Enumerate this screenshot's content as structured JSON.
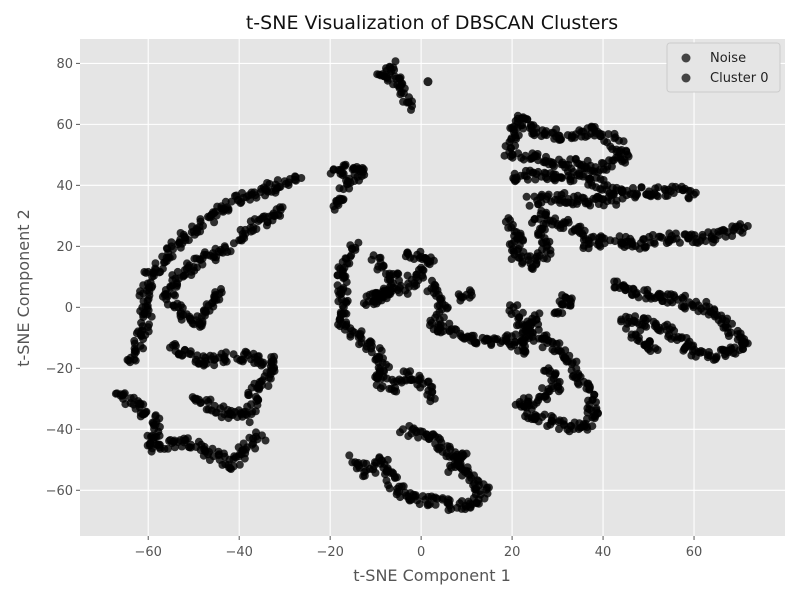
{
  "chart_data": {
    "type": "scatter",
    "title": "t-SNE Visualization of DBSCAN Clusters",
    "xlabel": "t-SNE Component 1",
    "ylabel": "t-SNE Component 2",
    "xlim": [
      -75,
      80
    ],
    "ylim": [
      -75,
      88
    ],
    "x_ticks": [
      -60,
      -40,
      -20,
      0,
      20,
      40,
      60
    ],
    "y_ticks": [
      -60,
      -40,
      -20,
      0,
      20,
      40,
      60,
      80
    ],
    "x_tick_labels": [
      "−60",
      "−40",
      "−20",
      "0",
      "20",
      "40",
      "60"
    ],
    "y_tick_labels": [
      "−60",
      "−40",
      "−20",
      "0",
      "20",
      "40",
      "60",
      "80"
    ],
    "grid": true,
    "legend": {
      "position": "top-right"
    },
    "colors": {
      "point": "#000000",
      "legend_marker": "#444444",
      "plot_bg": "#e5e5e5",
      "grid": "#ffffff"
    },
    "series": [
      {
        "name": "Noise",
        "points": [
          [
            1.5,
            74
          ]
        ]
      },
      {
        "name": "Cluster 0",
        "paths": [
          [
            [
              -6,
              80
            ],
            [
              -9,
              76
            ],
            [
              -5,
              74
            ],
            [
              -4,
              70
            ],
            [
              -2,
              66
            ]
          ],
          [
            [
              -27,
              43
            ],
            [
              -35,
              38
            ],
            [
              -42,
              34
            ],
            [
              -48,
              28
            ],
            [
              -53,
              22
            ],
            [
              -56,
              16
            ],
            [
              -60,
              10
            ],
            [
              -61,
              3
            ],
            [
              -60,
              -5
            ],
            [
              -62,
              -12
            ],
            [
              -64,
              -18
            ]
          ],
          [
            [
              -20,
              45
            ],
            [
              -13,
              45
            ],
            [
              -16,
              40
            ],
            [
              -18,
              35
            ],
            [
              -19,
              32
            ]
          ],
          [
            [
              -42,
              20
            ],
            [
              -48,
              16
            ],
            [
              -54,
              10
            ],
            [
              -56,
              4
            ],
            [
              -53,
              -2
            ],
            [
              -50,
              -6
            ],
            [
              -46,
              0
            ],
            [
              -44,
              6
            ]
          ],
          [
            [
              -30,
              32
            ],
            [
              -36,
              27
            ],
            [
              -40,
              22
            ]
          ],
          [
            [
              -55,
              -13
            ],
            [
              -48,
              -18
            ],
            [
              -40,
              -16
            ],
            [
              -32,
              -18
            ],
            [
              -34,
              -24
            ],
            [
              -38,
              -28
            ]
          ],
          [
            [
              -67,
              -28
            ],
            [
              -62,
              -32
            ],
            [
              -58,
              -38
            ],
            [
              -60,
              -46
            ],
            [
              -52,
              -44
            ],
            [
              -46,
              -48
            ],
            [
              -42,
              -52
            ],
            [
              -38,
              -46
            ],
            [
              -35,
              -42
            ]
          ],
          [
            [
              -50,
              -30
            ],
            [
              -44,
              -34
            ],
            [
              -38,
              -36
            ],
            [
              -36,
              -30
            ]
          ],
          [
            [
              -15,
              20
            ],
            [
              -18,
              12
            ],
            [
              -17,
              4
            ],
            [
              -18,
              -4
            ],
            [
              -14,
              -10
            ],
            [
              -10,
              -14
            ],
            [
              -8,
              -20
            ],
            [
              -10,
              -24
            ],
            [
              -6,
              -26
            ],
            [
              -3,
              -22
            ],
            [
              0,
              -24
            ],
            [
              3,
              -30
            ]
          ],
          [
            [
              -10,
              16
            ],
            [
              -6,
              10
            ],
            [
              -8,
              4
            ],
            [
              -12,
              2
            ],
            [
              -4,
              6
            ],
            [
              -1,
              10
            ],
            [
              2,
              16
            ],
            [
              -3,
              18
            ]
          ],
          [
            [
              2,
              8
            ],
            [
              5,
              0
            ],
            [
              3,
              -6
            ],
            [
              8,
              -8
            ],
            [
              12,
              -11
            ],
            [
              16,
              -12
            ],
            [
              20,
              -10
            ],
            [
              22,
              -14
            ],
            [
              24,
              -6
            ],
            [
              26,
              -2
            ]
          ],
          [
            [
              8,
              4
            ],
            [
              11,
              5
            ]
          ],
          [
            [
              -15,
              -50
            ],
            [
              -12,
              -54
            ],
            [
              -8,
              -50
            ],
            [
              -6,
              -58
            ],
            [
              -2,
              -63
            ],
            [
              3,
              -64
            ],
            [
              8,
              -65
            ],
            [
              12,
              -64
            ],
            [
              14,
              -60
            ],
            [
              10,
              -55
            ],
            [
              9,
              -50
            ],
            [
              5,
              -46
            ],
            [
              1,
              -42
            ],
            [
              -4,
              -40
            ]
          ],
          [
            [
              6,
              -54
            ],
            [
              10,
              -48
            ]
          ],
          [
            [
              19,
              49
            ],
            [
              20,
              56
            ],
            [
              22,
              63
            ],
            [
              24,
              58
            ],
            [
              28,
              57
            ],
            [
              32,
              56
            ],
            [
              38,
              58
            ],
            [
              42,
              55
            ],
            [
              45,
              50
            ],
            [
              40,
              46
            ],
            [
              34,
              47
            ],
            [
              27,
              48
            ],
            [
              22,
              49
            ]
          ],
          [
            [
              20,
              42
            ],
            [
              26,
              44
            ],
            [
              33,
              43
            ],
            [
              40,
              40
            ],
            [
              44,
              37
            ],
            [
              48,
              38
            ],
            [
              56,
              38
            ],
            [
              60,
              37
            ]
          ],
          [
            [
              24,
              35
            ],
            [
              30,
              36
            ],
            [
              37,
              35
            ],
            [
              43,
              35
            ]
          ],
          [
            [
              19,
              28
            ],
            [
              22,
              24
            ],
            [
              20,
              18
            ],
            [
              25,
              14
            ],
            [
              28,
              20
            ],
            [
              25,
              29
            ]
          ],
          [
            [
              26,
              30
            ],
            [
              30,
              28
            ],
            [
              34,
              26
            ],
            [
              36,
              21
            ],
            [
              40,
              22
            ],
            [
              48,
              21
            ],
            [
              55,
              23
            ],
            [
              60,
              22
            ],
            [
              66,
              24
            ],
            [
              71,
              26
            ]
          ],
          [
            [
              42,
              8
            ],
            [
              48,
              5
            ],
            [
              55,
              3
            ],
            [
              62,
              0
            ],
            [
              66,
              -4
            ],
            [
              70,
              -10
            ],
            [
              72,
              -12
            ],
            [
              68,
              -15
            ],
            [
              62,
              -16
            ],
            [
              58,
              -12
            ],
            [
              54,
              -8
            ],
            [
              50,
              -5
            ],
            [
              44,
              -4
            ]
          ],
          [
            [
              46,
              -8
            ],
            [
              50,
              -12
            ],
            [
              52,
              -14
            ]
          ],
          [
            [
              20,
              0
            ],
            [
              24,
              -8
            ],
            [
              28,
              -12
            ],
            [
              32,
              -16
            ],
            [
              34,
              -22
            ],
            [
              37,
              -28
            ],
            [
              38,
              -34
            ],
            [
              36,
              -40
            ],
            [
              30,
              -38
            ],
            [
              24,
              -36
            ],
            [
              22,
              -32
            ],
            [
              26,
              -30
            ],
            [
              30,
              -26
            ],
            [
              28,
              -20
            ]
          ],
          [
            [
              30,
              -2
            ],
            [
              33,
              2
            ],
            [
              31,
              4
            ]
          ]
        ]
      }
    ]
  }
}
